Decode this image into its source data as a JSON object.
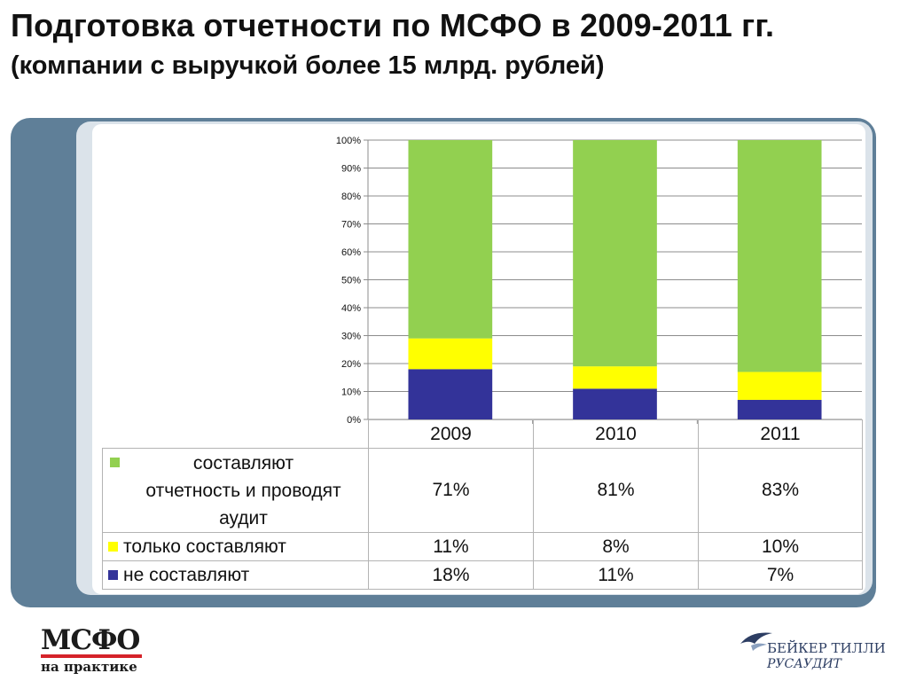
{
  "slide": {
    "title_line1": "Подготовка отчетности по МСФО в 2009-2011 гг.",
    "title_line2": "(компании с выручкой более 15 млрд. рублей)"
  },
  "chart_data": {
    "type": "bar",
    "stacked": true,
    "percent_stacked": true,
    "categories": [
      "2009",
      "2010",
      "2011"
    ],
    "series": [
      {
        "name": "не составляют",
        "values": [
          18,
          11,
          7
        ],
        "labels": [
          "18%",
          "11%",
          "7%"
        ],
        "color": "#333399"
      },
      {
        "name": "только составляют",
        "values": [
          11,
          8,
          10
        ],
        "labels": [
          "11%",
          "8%",
          "10%"
        ],
        "color": "#ffff00"
      },
      {
        "name": "составляют отчетность и проводят аудит",
        "values": [
          71,
          81,
          83
        ],
        "labels": [
          "71%",
          "81%",
          "83%"
        ],
        "color": "#92d050"
      }
    ],
    "y_ticks": [
      "0%",
      "10%",
      "20%",
      "30%",
      "40%",
      "50%",
      "60%",
      "70%",
      "80%",
      "90%",
      "100%"
    ],
    "ylim": [
      0,
      100
    ],
    "grid": true,
    "legend": "data table below chart"
  },
  "table": {
    "row_audit": {
      "label_line1": "составляют",
      "label_line2": "отчетность и проводят",
      "label_line3": "аудит"
    }
  },
  "logos": {
    "left_line1": "МСФО",
    "left_line2": "на практике",
    "right_line1": "БЕЙКЕР ТИЛЛИ",
    "right_line2": "РУСАУДИТ"
  }
}
